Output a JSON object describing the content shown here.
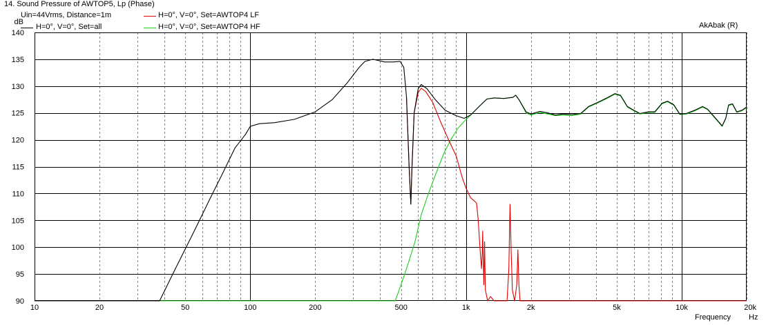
{
  "header": {
    "title": "14. Sound Pressure of AWTOP5, Lp (Phase)",
    "condition": "Uin=44Vrms, Distance=1m",
    "copyright": "AkAbak (R)"
  },
  "colors": {
    "all": "#000000",
    "lf": "#e00000",
    "hf": "#18d018",
    "grid": "#808080",
    "background": "#ffffff"
  },
  "chart_data": {
    "type": "line",
    "title": "14. Sound Pressure of AWTOP5, Lp (Phase)",
    "ylabel": "dB",
    "xlabel": "Frequency",
    "xunit": "Hz",
    "xscale": "log",
    "xlim": [
      10,
      20000
    ],
    "ylim": [
      90,
      140
    ],
    "grid": true,
    "legend_position": "top-left",
    "yticks": [
      90,
      95,
      100,
      105,
      110,
      115,
      120,
      125,
      130,
      135,
      140
    ],
    "xticks": [
      {
        "v": 10,
        "label": "10"
      },
      {
        "v": 20,
        "label": "20"
      },
      {
        "v": 50,
        "label": "50"
      },
      {
        "v": 100,
        "label": "100"
      },
      {
        "v": 200,
        "label": "200"
      },
      {
        "v": 500,
        "label": "500"
      },
      {
        "v": 1000,
        "label": "1k"
      },
      {
        "v": 2000,
        "label": "2k"
      },
      {
        "v": 5000,
        "label": "5k"
      },
      {
        "v": 10000,
        "label": "10k"
      },
      {
        "v": 20000,
        "label": "20k"
      }
    ],
    "series": [
      {
        "name": "H=0°, V=0°, Set=all",
        "color": "#000000",
        "points": [
          [
            10,
            90
          ],
          [
            38,
            90
          ],
          [
            45,
            96
          ],
          [
            55,
            103
          ],
          [
            65,
            109
          ],
          [
            75,
            114
          ],
          [
            85,
            118.5
          ],
          [
            95,
            121
          ],
          [
            100,
            122.5
          ],
          [
            110,
            123
          ],
          [
            130,
            123.2
          ],
          [
            160,
            123.8
          ],
          [
            200,
            125.2
          ],
          [
            240,
            127.5
          ],
          [
            280,
            130.5
          ],
          [
            320,
            133.5
          ],
          [
            340,
            134.6
          ],
          [
            370,
            135
          ],
          [
            420,
            134.5
          ],
          [
            460,
            134.5
          ],
          [
            495,
            134.6
          ],
          [
            515,
            133.5
          ],
          [
            530,
            128
          ],
          [
            545,
            115
          ],
          [
            555,
            108
          ],
          [
            562,
            115
          ],
          [
            575,
            125
          ],
          [
            600,
            129.5
          ],
          [
            620,
            130.3
          ],
          [
            660,
            129.5
          ],
          [
            720,
            127.5
          ],
          [
            800,
            125.5
          ],
          [
            900,
            124.5
          ],
          [
            980,
            124
          ],
          [
            1050,
            124.6
          ],
          [
            1150,
            126.2
          ],
          [
            1250,
            127.6
          ],
          [
            1350,
            127.8
          ],
          [
            1500,
            127.7
          ],
          [
            1650,
            127.9
          ],
          [
            1700,
            128.3
          ],
          [
            1760,
            127.5
          ],
          [
            1900,
            125.2
          ],
          [
            2000,
            124.8
          ],
          [
            2200,
            125.3
          ],
          [
            2400,
            125
          ],
          [
            2600,
            124.6
          ],
          [
            2800,
            124.8
          ],
          [
            3100,
            124.7
          ],
          [
            3400,
            124.9
          ],
          [
            3700,
            126.2
          ],
          [
            4100,
            127
          ],
          [
            4500,
            127.8
          ],
          [
            4900,
            128.6
          ],
          [
            5200,
            128.3
          ],
          [
            5600,
            126.2
          ],
          [
            6000,
            125.5
          ],
          [
            6400,
            124.9
          ],
          [
            7000,
            125.2
          ],
          [
            7500,
            125.2
          ],
          [
            8100,
            126.8
          ],
          [
            8600,
            127.2
          ],
          [
            9200,
            126.5
          ],
          [
            9800,
            124.8
          ],
          [
            10500,
            124.9
          ],
          [
            11500,
            125.5
          ],
          [
            12500,
            126.2
          ],
          [
            13200,
            125.7
          ],
          [
            14500,
            123.8
          ],
          [
            15400,
            122.6
          ],
          [
            16000,
            124
          ],
          [
            16500,
            126.5
          ],
          [
            17200,
            126.7
          ],
          [
            18000,
            125.2
          ],
          [
            19000,
            125.5
          ],
          [
            20000,
            126.1
          ]
        ]
      },
      {
        "name": "H=0°, V=0°, Set=AWTOP4 LF",
        "color": "#e00000",
        "points": [
          [
            530,
            128
          ],
          [
            545,
            115
          ],
          [
            555,
            108
          ],
          [
            562,
            115
          ],
          [
            575,
            125
          ],
          [
            600,
            128.8
          ],
          [
            620,
            129.6
          ],
          [
            650,
            129
          ],
          [
            700,
            127
          ],
          [
            760,
            123.5
          ],
          [
            830,
            120
          ],
          [
            900,
            117
          ],
          [
            960,
            113
          ],
          [
            1000,
            111
          ],
          [
            1050,
            109.2
          ],
          [
            1100,
            108.5
          ],
          [
            1120,
            108.2
          ],
          [
            1140,
            105
          ],
          [
            1160,
            100
          ],
          [
            1180,
            96
          ],
          [
            1190,
            99
          ],
          [
            1195,
            103
          ],
          [
            1200,
            99
          ],
          [
            1210,
            93
          ],
          [
            1220,
            101
          ],
          [
            1230,
            92
          ],
          [
            1260,
            90
          ],
          [
            1300,
            90.8
          ],
          [
            1350,
            90
          ],
          [
            1550,
            90
          ],
          [
            1580,
            96
          ],
          [
            1600,
            108
          ],
          [
            1620,
            99
          ],
          [
            1640,
            92
          ],
          [
            1680,
            90
          ],
          [
            1720,
            93
          ],
          [
            1740,
            99.5
          ],
          [
            1760,
            93
          ],
          [
            1780,
            90
          ],
          [
            20000,
            90
          ]
        ]
      },
      {
        "name": "H=0°, V=0°, Set=AWTOP4 HF",
        "color": "#18d018",
        "points": [
          [
            10,
            90
          ],
          [
            470,
            90
          ],
          [
            500,
            93
          ],
          [
            540,
            97
          ],
          [
            580,
            101
          ],
          [
            620,
            106
          ],
          [
            670,
            110
          ],
          [
            730,
            114
          ],
          [
            790,
            117.5
          ],
          [
            850,
            120
          ],
          [
            920,
            122.2
          ],
          [
            990,
            123.6
          ],
          [
            1050,
            124.6
          ],
          [
            1150,
            126.2
          ],
          [
            1250,
            127.6
          ],
          [
            1350,
            127.8
          ],
          [
            1500,
            127.7
          ],
          [
            1650,
            127.9
          ],
          [
            1700,
            128.3
          ],
          [
            1760,
            127.5
          ],
          [
            1900,
            125
          ],
          [
            2000,
            124.6
          ],
          [
            2200,
            125.1
          ],
          [
            2400,
            124.8
          ],
          [
            2600,
            124.5
          ],
          [
            2800,
            124.6
          ],
          [
            3100,
            124.5
          ],
          [
            3400,
            124.8
          ],
          [
            3700,
            126.1
          ],
          [
            4100,
            126.9
          ],
          [
            4500,
            127.7
          ],
          [
            4900,
            128.5
          ],
          [
            5200,
            128.2
          ],
          [
            5600,
            126.1
          ],
          [
            6000,
            125.4
          ],
          [
            6400,
            124.8
          ],
          [
            7000,
            125.1
          ],
          [
            7500,
            125.1
          ],
          [
            8100,
            126.7
          ],
          [
            8600,
            127.1
          ],
          [
            9200,
            126.4
          ],
          [
            9800,
            124.7
          ],
          [
            10500,
            124.8
          ],
          [
            11500,
            125.4
          ],
          [
            12500,
            126.1
          ],
          [
            13200,
            125.6
          ],
          [
            14500,
            123.7
          ],
          [
            15400,
            122.5
          ],
          [
            16000,
            123.9
          ],
          [
            16500,
            126.4
          ],
          [
            17200,
            126.6
          ],
          [
            18000,
            125.1
          ],
          [
            19000,
            125.4
          ],
          [
            20000,
            126
          ]
        ]
      }
    ]
  }
}
